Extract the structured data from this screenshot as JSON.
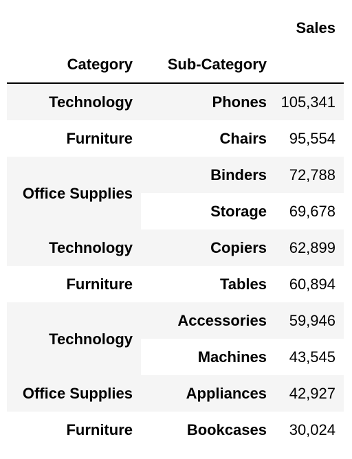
{
  "table": {
    "value_header": "Sales",
    "index_headers": [
      "Category",
      "Sub-Category"
    ],
    "rows": [
      {
        "category": "Technology",
        "sub_category": "Phones",
        "sales": "105,341"
      },
      {
        "category": "Furniture",
        "sub_category": "Chairs",
        "sales": "95,554"
      },
      {
        "category": "Office Supplies",
        "sub_category": "Binders",
        "sales": "72,788"
      },
      {
        "category": "",
        "sub_category": "Storage",
        "sales": "69,678"
      },
      {
        "category": "Technology",
        "sub_category": "Copiers",
        "sales": "62,899"
      },
      {
        "category": "Furniture",
        "sub_category": "Tables",
        "sales": "60,894"
      },
      {
        "category": "Technology",
        "sub_category": "Accessories",
        "sales": "59,946"
      },
      {
        "category": "",
        "sub_category": "Machines",
        "sales": "43,545"
      },
      {
        "category": "Office Supplies",
        "sub_category": "Appliances",
        "sales": "42,927"
      },
      {
        "category": "Furniture",
        "sub_category": "Bookcases",
        "sales": "30,024"
      }
    ]
  },
  "colors": {
    "stripe": "#f5f5f5",
    "background": "#ffffff",
    "text": "#000000"
  }
}
